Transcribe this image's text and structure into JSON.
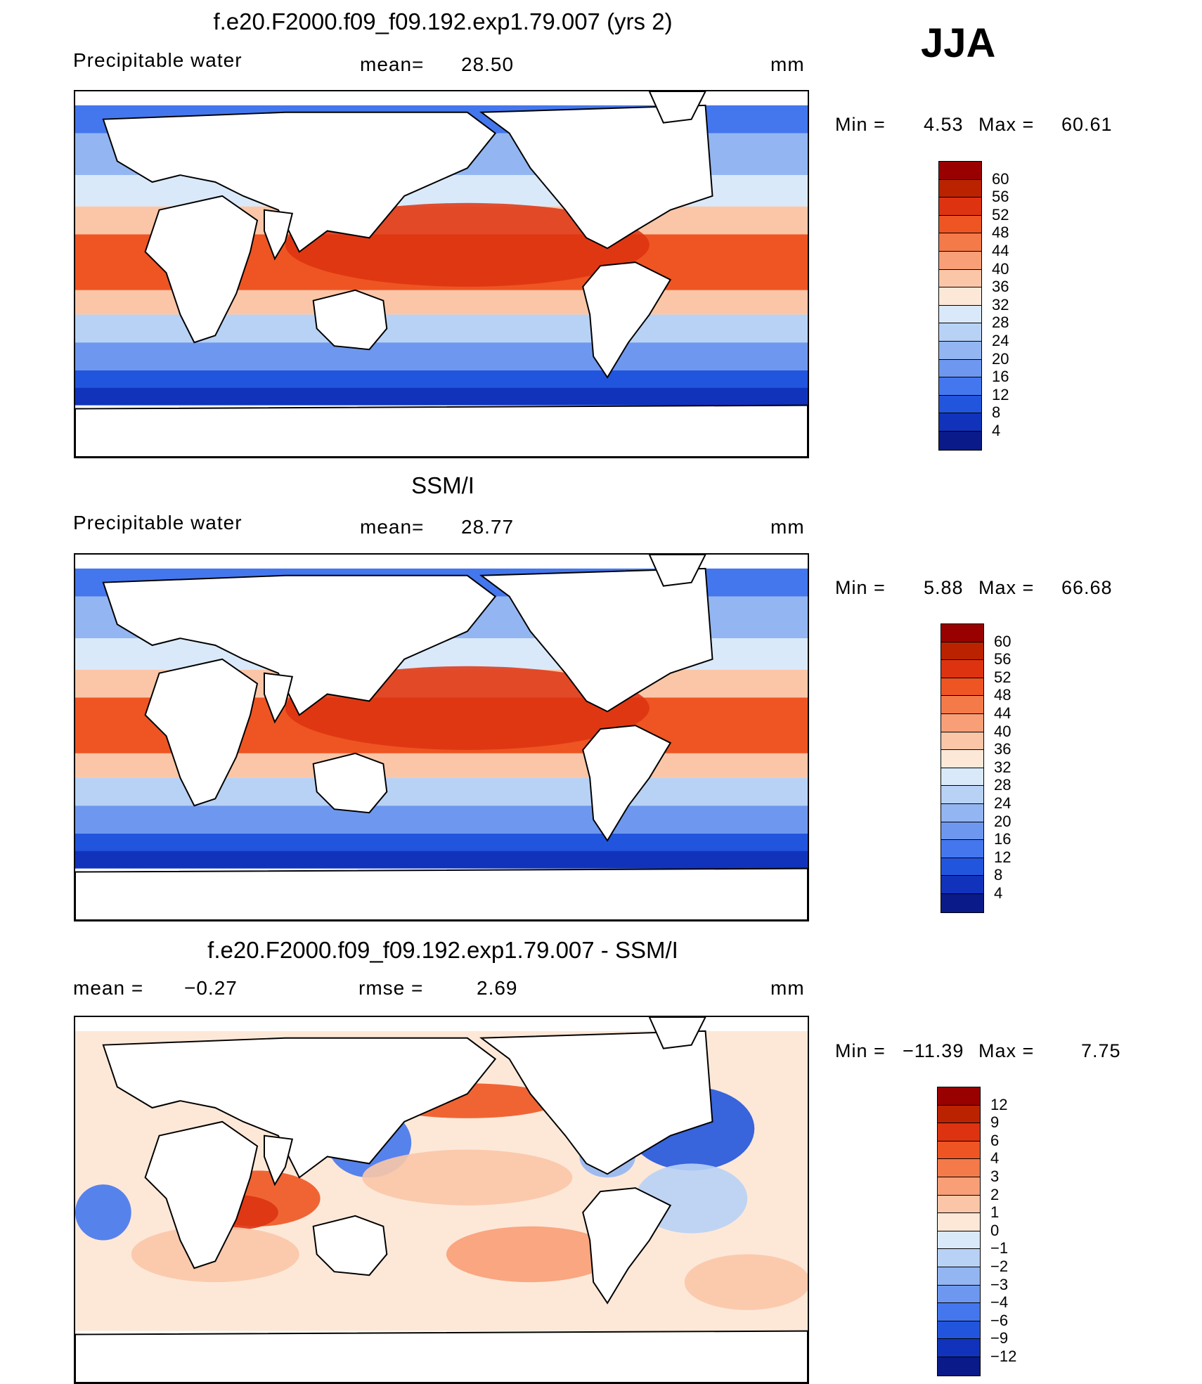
{
  "season": "JJA",
  "land_color": "#ffffff",
  "panels": [
    {
      "id": "model",
      "title": "f.e20.F2000.f09_f09.192.exp1.79.007 (yrs 2)",
      "variable": "Precipitable water",
      "stat1_label": "mean=",
      "stat1_value": "28.50",
      "stat2_label": "",
      "stat2_value": "",
      "units": "mm",
      "min_text": "Min =",
      "min_value": "4.53",
      "max_text": "Max =",
      "max_value": "60.61",
      "colorbar": {
        "labels": [
          "60",
          "56",
          "52",
          "48",
          "44",
          "40",
          "36",
          "32",
          "28",
          "24",
          "20",
          "16",
          "12",
          "8",
          "4"
        ],
        "colors": [
          "#990000",
          "#bb2200",
          "#dd3311",
          "#ee5522",
          "#f47a4a",
          "#f89f78",
          "#fbc6a8",
          "#fde8d8",
          "#d9e9fa",
          "#b8d2f6",
          "#93b6f2",
          "#6e98ef",
          "#4477ee",
          "#2255dd",
          "#1133bb",
          "#0a1a88"
        ]
      }
    },
    {
      "id": "obs",
      "title": "SSM/I",
      "variable": "Precipitable water",
      "stat1_label": "mean=",
      "stat1_value": "28.77",
      "stat2_label": "",
      "stat2_value": "",
      "units": "mm",
      "min_text": "Min =",
      "min_value": "5.88",
      "max_text": "Max =",
      "max_value": "66.68",
      "colorbar": {
        "labels": [
          "60",
          "56",
          "52",
          "48",
          "44",
          "40",
          "36",
          "32",
          "28",
          "24",
          "20",
          "16",
          "12",
          "8",
          "4"
        ],
        "colors": [
          "#990000",
          "#bb2200",
          "#dd3311",
          "#ee5522",
          "#f47a4a",
          "#f89f78",
          "#fbc6a8",
          "#fde8d8",
          "#d9e9fa",
          "#b8d2f6",
          "#93b6f2",
          "#6e98ef",
          "#4477ee",
          "#2255dd",
          "#1133bb",
          "#0a1a88"
        ]
      }
    },
    {
      "id": "diff",
      "title": "f.e20.F2000.f09_f09.192.exp1.79.007 - SSM/I",
      "variable": "",
      "stat1_label": "mean =",
      "stat1_value": "−0.27",
      "stat2_label": "rmse =",
      "stat2_value": "2.69",
      "units": "mm",
      "min_text": "Min =",
      "min_value": "−11.39",
      "max_text": "Max =",
      "max_value": "7.75",
      "colorbar": {
        "labels": [
          "12",
          "9",
          "6",
          "4",
          "3",
          "2",
          "1",
          "0",
          "−1",
          "−2",
          "−3",
          "−4",
          "−6",
          "−9",
          "−12"
        ],
        "colors": [
          "#990000",
          "#bb2200",
          "#dd3311",
          "#ee5522",
          "#f47a4a",
          "#f89f78",
          "#fbc6a8",
          "#fde8d8",
          "#d9e9fa",
          "#b8d2f6",
          "#93b6f2",
          "#6e98ef",
          "#4477ee",
          "#2255dd",
          "#1133bb",
          "#0a1a88"
        ]
      }
    }
  ]
}
